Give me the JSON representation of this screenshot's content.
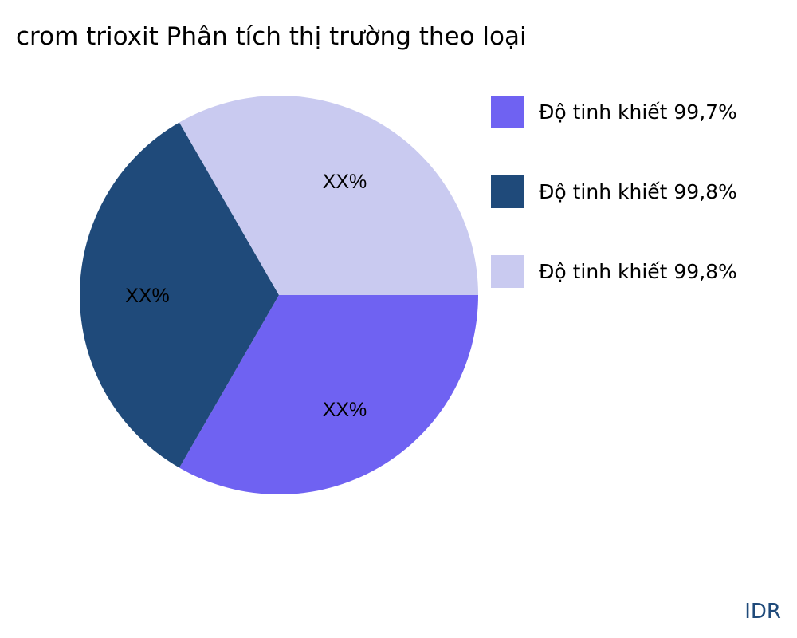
{
  "chart_data": {
    "type": "pie",
    "title": "crom trioxit Phân tích thị trường theo loại",
    "categories": [
      "Độ tinh khiết 99,7%",
      "Độ tinh khiết 99,8%",
      "Độ tinh khiết 99,8%"
    ],
    "values": [
      1,
      1,
      1
    ],
    "data_labels": [
      "XX%",
      "XX%",
      "XX%"
    ],
    "colors": [
      "#6f62f2",
      "#1f4a7a",
      "#c9caf0"
    ],
    "legend_position": "right",
    "direction": "clockwise",
    "start_angle": "3 o'clock"
  },
  "brand": "IDR"
}
